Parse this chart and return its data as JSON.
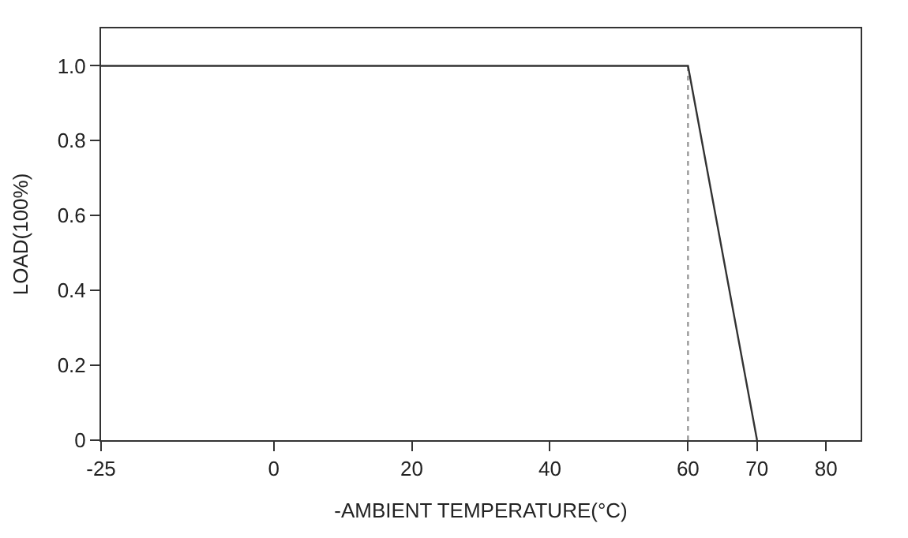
{
  "chart_data": {
    "type": "line",
    "xlabel": "-AMBIENT TEMPERATURE(°C)",
    "ylabel": "LOAD(100%)",
    "series": [
      {
        "color": "#333333",
        "x": [
          -25,
          60,
          70
        ],
        "values": [
          1,
          1,
          0
        ],
        "line_style": "solid"
      }
    ],
    "ref_lines": [
      {
        "axis": "x",
        "value": 60,
        "color": "#999999",
        "line_style": "dotted"
      }
    ],
    "xlim": [
      -25,
      85
    ],
    "xticks": [
      -25,
      0,
      20,
      40,
      60,
      70,
      80
    ],
    "ylim": [
      0,
      1.1
    ],
    "yticks": [
      {
        "value": 0,
        "label": "0"
      },
      0.2,
      0.4,
      0.6,
      0.8,
      {
        "value": 1,
        "label": "1.0"
      }
    ],
    "grid": false,
    "marker": "none"
  }
}
